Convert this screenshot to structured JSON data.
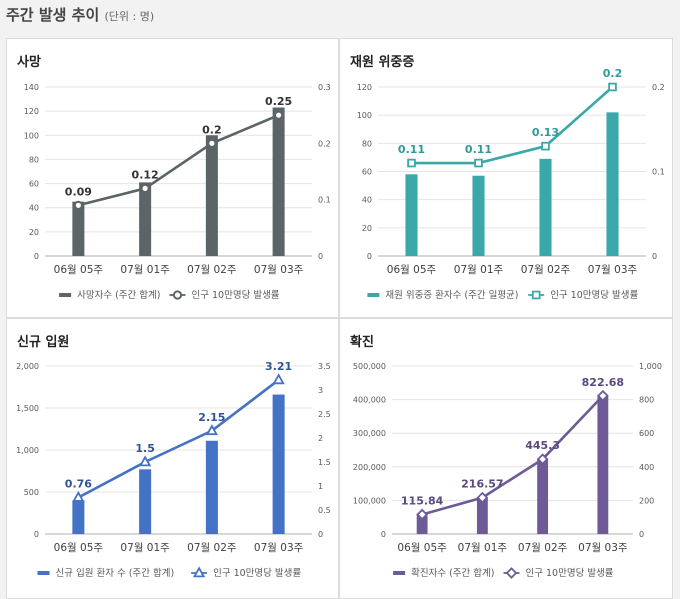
{
  "page": {
    "title": "주간 발생 추이",
    "unit": "(단위 : 명)"
  },
  "chart_data": [
    {
      "type": "bar",
      "title": "사망",
      "categories": [
        "06월 05주",
        "07월 01주",
        "07월 02주",
        "07월 03주"
      ],
      "bar_series": {
        "name": "사망자수 (주간 합계)",
        "values": [
          45,
          61,
          100,
          123
        ],
        "color": "#5b6466"
      },
      "line_series": {
        "name": "인구 10만명당 발생률",
        "values": [
          0.09,
          0.12,
          0.2,
          0.25
        ],
        "labels": [
          "0.09",
          "0.12",
          "0.2",
          "0.25"
        ],
        "color": "#5b6466",
        "marker": "circle"
      },
      "left_axis": {
        "min": 0,
        "max": 140,
        "ticks": [
          "0",
          "20",
          "40",
          "60",
          "80",
          "100",
          "120",
          "140"
        ]
      },
      "right_axis": {
        "min": 0,
        "max": 0.3,
        "ticks": [
          "0",
          "0.1",
          "0.2",
          "0.3"
        ]
      },
      "label_color": "#333333"
    },
    {
      "type": "bar",
      "title": "재원 위중증",
      "categories": [
        "06월 05주",
        "07월 01주",
        "07월 02주",
        "07월 03주"
      ],
      "bar_series": {
        "name": "재원 위중증 환자수 (주간 일평균)",
        "values": [
          58,
          57,
          69,
          102
        ],
        "color": "#3aa8a8"
      },
      "line_series": {
        "name": "인구 10만명당 발생률",
        "values": [
          0.11,
          0.11,
          0.13,
          0.2
        ],
        "labels": [
          "0.11",
          "0.11",
          "0.13",
          "0.2"
        ],
        "color": "#3aa8a8",
        "marker": "square"
      },
      "left_axis": {
        "min": 0,
        "max": 120,
        "ticks": [
          "0",
          "20",
          "40",
          "60",
          "80",
          "100",
          "120"
        ]
      },
      "right_axis": {
        "min": 0,
        "max": 0.2,
        "ticks": [
          "0",
          "0.1",
          "0.2"
        ]
      },
      "label_color": "#2e9a9a"
    },
    {
      "type": "bar",
      "title": "신규 입원",
      "categories": [
        "06월 05주",
        "07월 01주",
        "07월 02주",
        "07월 03주"
      ],
      "bar_series": {
        "name": "신규 입원 환자 수 (주간 합계)",
        "values": [
          400,
          770,
          1110,
          1660
        ],
        "color": "#4472c4"
      },
      "line_series": {
        "name": "인구 10만명당 발생률",
        "values": [
          0.76,
          1.5,
          2.15,
          3.21
        ],
        "labels": [
          "0.76",
          "1.5",
          "2.15",
          "3.21"
        ],
        "color": "#4472c4",
        "marker": "triangle"
      },
      "left_axis": {
        "min": 0,
        "max": 2000,
        "ticks": [
          "0",
          "500",
          "1,000",
          "1,500",
          "2,000"
        ]
      },
      "right_axis": {
        "min": 0,
        "max": 3.5,
        "ticks": [
          "0",
          "0.5",
          "1",
          "1.5",
          "2",
          "2.5",
          "3",
          "3.5"
        ]
      },
      "label_color": "#2f5597"
    },
    {
      "type": "bar",
      "title": "확진",
      "categories": [
        "06월 05주",
        "07월 01주",
        "07월 02주",
        "07월 03주"
      ],
      "bar_series": {
        "name": "확진자수 (주간 합계)",
        "values": [
          60000,
          110000,
          225000,
          412000
        ],
        "color": "#6e5a96"
      },
      "line_series": {
        "name": "인구 10만명당 발생률",
        "values": [
          115.84,
          216.57,
          445.3,
          822.68
        ],
        "labels": [
          "115.84",
          "216.57",
          "445.3",
          "822.68"
        ],
        "color": "#6e5a96",
        "marker": "diamond"
      },
      "left_axis": {
        "min": 0,
        "max": 500000,
        "ticks": [
          "0",
          "100,000",
          "200,000",
          "300,000",
          "400,000",
          "500,000"
        ]
      },
      "right_axis": {
        "min": 0,
        "max": 1000,
        "ticks": [
          "0",
          "200",
          "400",
          "600",
          "800",
          "1,000"
        ]
      },
      "label_color": "#5a4a80"
    }
  ]
}
